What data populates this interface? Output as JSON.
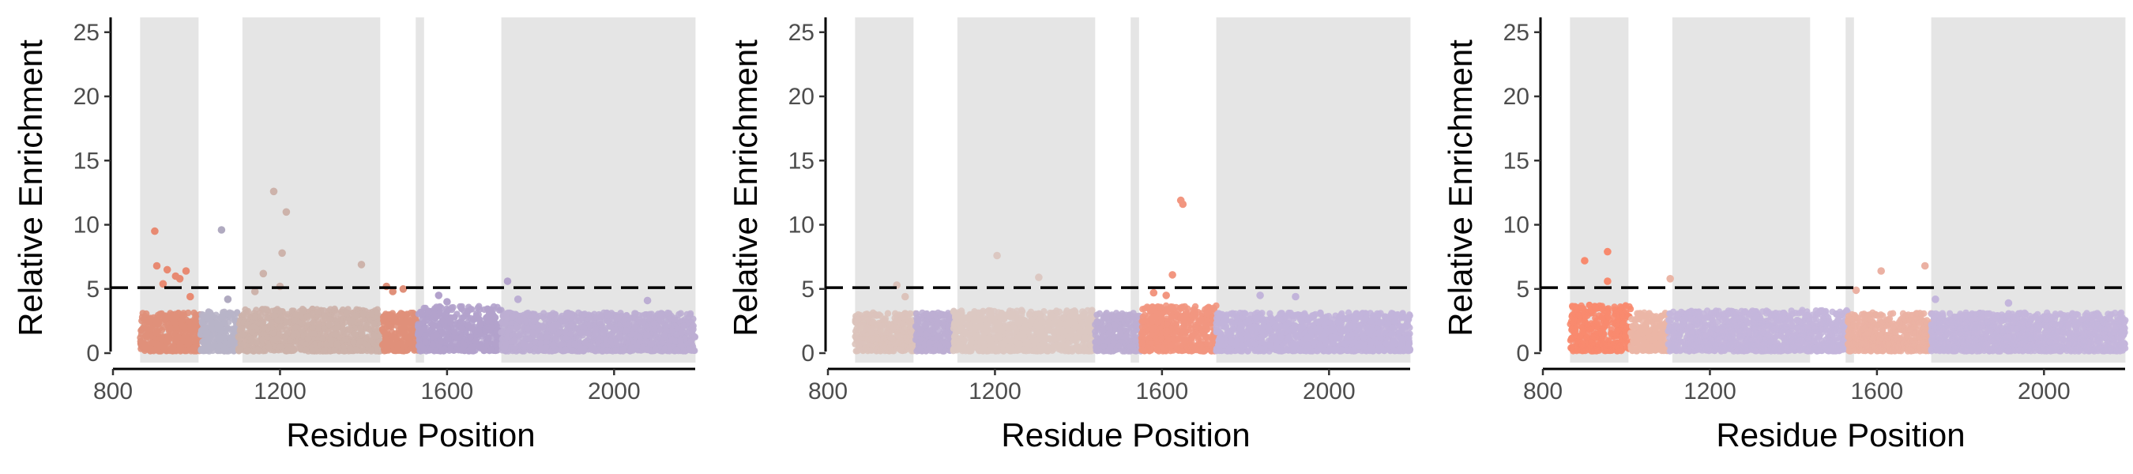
{
  "chart_data": [
    {
      "type": "scatter",
      "xlabel": "Residue Position",
      "ylabel": "Relative Enrichment",
      "xlim": [
        800,
        2200
      ],
      "ylim": [
        0,
        26
      ],
      "xticks": [
        800,
        1200,
        1600,
        2000
      ],
      "yticks": [
        0,
        5,
        10,
        15,
        20,
        25
      ],
      "threshold": 5.1,
      "shaded_regions": [
        [
          865,
          1005
        ],
        [
          1110,
          1440
        ],
        [
          1525,
          1545
        ],
        [
          1730,
          2195
        ]
      ],
      "domains": [
        {
          "start": 865,
          "end": 1010,
          "color": "#e0907a",
          "max_bg": 3.0
        },
        {
          "start": 1010,
          "end": 1100,
          "color": "#b8b4c8",
          "max_bg": 3.2
        },
        {
          "start": 1100,
          "end": 1445,
          "color": "#cdb3ab",
          "max_bg": 3.3
        },
        {
          "start": 1445,
          "end": 1530,
          "color": "#e0907a",
          "max_bg": 3.0
        },
        {
          "start": 1530,
          "end": 1730,
          "color": "#b3a2cc",
          "max_bg": 3.5
        },
        {
          "start": 1730,
          "end": 2195,
          "color": "#bcaed3",
          "max_bg": 3.0
        }
      ],
      "highlights": [
        {
          "x": 900,
          "y": 9.5,
          "color": "#e88a72"
        },
        {
          "x": 905,
          "y": 6.8,
          "color": "#e88a72"
        },
        {
          "x": 930,
          "y": 6.5,
          "color": "#e88a72"
        },
        {
          "x": 950,
          "y": 6.0,
          "color": "#e88a72"
        },
        {
          "x": 960,
          "y": 5.8,
          "color": "#e88a72"
        },
        {
          "x": 975,
          "y": 6.4,
          "color": "#e88a72"
        },
        {
          "x": 920,
          "y": 5.4,
          "color": "#e88a72"
        },
        {
          "x": 985,
          "y": 4.4,
          "color": "#e88a72"
        },
        {
          "x": 1060,
          "y": 9.6,
          "color": "#b0aac0"
        },
        {
          "x": 1075,
          "y": 4.2,
          "color": "#b0aac0"
        },
        {
          "x": 1185,
          "y": 12.6,
          "color": "#cdb3ab"
        },
        {
          "x": 1215,
          "y": 11.0,
          "color": "#cdb3ab"
        },
        {
          "x": 1205,
          "y": 7.8,
          "color": "#cdb3ab"
        },
        {
          "x": 1160,
          "y": 6.2,
          "color": "#cdb3ab"
        },
        {
          "x": 1200,
          "y": 5.2,
          "color": "#cdb3ab"
        },
        {
          "x": 1140,
          "y": 4.8,
          "color": "#cdb3ab"
        },
        {
          "x": 1395,
          "y": 6.9,
          "color": "#cdb3ab"
        },
        {
          "x": 1455,
          "y": 5.2,
          "color": "#e0907a"
        },
        {
          "x": 1470,
          "y": 4.8,
          "color": "#e0907a"
        },
        {
          "x": 1495,
          "y": 5.0,
          "color": "#e0907a"
        },
        {
          "x": 1580,
          "y": 4.5,
          "color": "#b3a2cc"
        },
        {
          "x": 1600,
          "y": 4.0,
          "color": "#b3a2cc"
        },
        {
          "x": 1745,
          "y": 5.6,
          "color": "#b3a2cc"
        },
        {
          "x": 1770,
          "y": 4.2,
          "color": "#bcaed3"
        },
        {
          "x": 2080,
          "y": 4.1,
          "color": "#bcaed3"
        }
      ]
    },
    {
      "type": "scatter",
      "xlabel": "Residue Position",
      "ylabel": "Relative Enrichment",
      "xlim": [
        800,
        2200
      ],
      "ylim": [
        0,
        26
      ],
      "xticks": [
        800,
        1200,
        1600,
        2000
      ],
      "yticks": [
        0,
        5,
        10,
        15,
        20,
        25
      ],
      "threshold": 5.1,
      "shaded_regions": [
        [
          865,
          1005
        ],
        [
          1110,
          1440
        ],
        [
          1525,
          1545
        ],
        [
          1730,
          2195
        ]
      ],
      "domains": [
        {
          "start": 865,
          "end": 1010,
          "color": "#dcc3bb",
          "max_bg": 3.0
        },
        {
          "start": 1010,
          "end": 1100,
          "color": "#bcaed3",
          "max_bg": 3.0
        },
        {
          "start": 1100,
          "end": 1440,
          "color": "#dcc8c2",
          "max_bg": 3.2
        },
        {
          "start": 1440,
          "end": 1550,
          "color": "#bcaed3",
          "max_bg": 3.0
        },
        {
          "start": 1550,
          "end": 1730,
          "color": "#f29680",
          "max_bg": 3.6
        },
        {
          "start": 1730,
          "end": 2195,
          "color": "#c2b4da",
          "max_bg": 3.0
        }
      ],
      "highlights": [
        {
          "x": 965,
          "y": 5.3,
          "color": "#dcc3bb"
        },
        {
          "x": 985,
          "y": 4.4,
          "color": "#dcc3bb"
        },
        {
          "x": 1205,
          "y": 7.6,
          "color": "#dcc8c2"
        },
        {
          "x": 1305,
          "y": 5.9,
          "color": "#dcc8c2"
        },
        {
          "x": 1645,
          "y": 11.9,
          "color": "#f29680"
        },
        {
          "x": 1650,
          "y": 11.6,
          "color": "#f29680"
        },
        {
          "x": 1625,
          "y": 6.1,
          "color": "#f29680"
        },
        {
          "x": 1580,
          "y": 4.7,
          "color": "#f29680"
        },
        {
          "x": 1610,
          "y": 4.5,
          "color": "#f29680"
        },
        {
          "x": 1835,
          "y": 4.5,
          "color": "#c2b4da"
        },
        {
          "x": 1920,
          "y": 4.4,
          "color": "#c2b4da"
        }
      ]
    },
    {
      "type": "scatter",
      "xlabel": "Residue Position",
      "ylabel": "Relative Enrichment",
      "xlim": [
        800,
        2200
      ],
      "ylim": [
        0,
        26
      ],
      "xticks": [
        800,
        1200,
        1600,
        2000
      ],
      "yticks": [
        0,
        5,
        10,
        15,
        20,
        25
      ],
      "threshold": 5.1,
      "shaded_regions": [
        [
          865,
          1005
        ],
        [
          1110,
          1440
        ],
        [
          1525,
          1545
        ],
        [
          1730,
          2195
        ]
      ],
      "domains": [
        {
          "start": 865,
          "end": 1010,
          "color": "#f88a6e",
          "max_bg": 3.6
        },
        {
          "start": 1010,
          "end": 1100,
          "color": "#ebb6a6",
          "max_bg": 3.0
        },
        {
          "start": 1100,
          "end": 1530,
          "color": "#c4b6dc",
          "max_bg": 3.2
        },
        {
          "start": 1530,
          "end": 1730,
          "color": "#ebb1a3",
          "max_bg": 3.0
        },
        {
          "start": 1730,
          "end": 2195,
          "color": "#c4b6dc",
          "max_bg": 3.0
        }
      ],
      "highlights": [
        {
          "x": 900,
          "y": 7.2,
          "color": "#f88a6e"
        },
        {
          "x": 955,
          "y": 7.9,
          "color": "#f88a6e"
        },
        {
          "x": 955,
          "y": 5.6,
          "color": "#f88a6e"
        },
        {
          "x": 1105,
          "y": 5.8,
          "color": "#ebb6a6"
        },
        {
          "x": 1550,
          "y": 4.9,
          "color": "#ebb1a3"
        },
        {
          "x": 1610,
          "y": 6.4,
          "color": "#ebb1a3"
        },
        {
          "x": 1715,
          "y": 6.8,
          "color": "#ebb1a3"
        },
        {
          "x": 1740,
          "y": 4.2,
          "color": "#c4b6dc"
        },
        {
          "x": 1915,
          "y": 3.9,
          "color": "#c4b6dc"
        }
      ]
    }
  ]
}
